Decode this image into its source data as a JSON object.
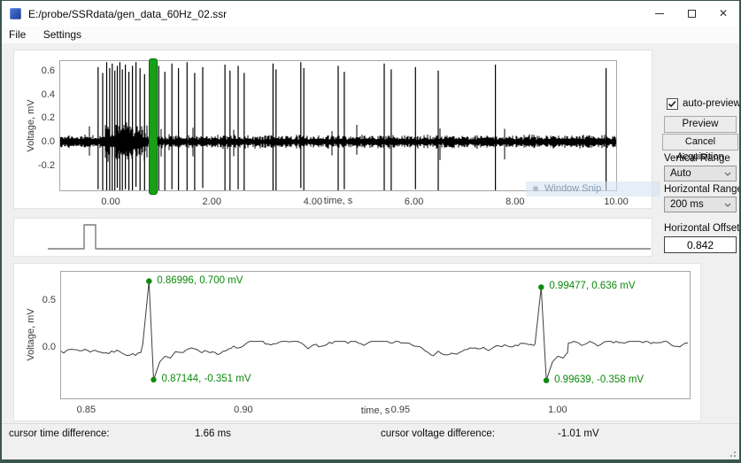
{
  "window": {
    "title": "E:/probe/SSRdata/gen_data_60Hz_02.ssr",
    "minimize_icon": "minimize",
    "maximize_icon": "maximize",
    "close_icon": "✕"
  },
  "menu": {
    "items": [
      "File",
      "Settings"
    ]
  },
  "controls_panel": {
    "auto_preview_label": "auto-preview",
    "auto_preview_checked": true,
    "preview_button": "Preview",
    "cancel_button": "Cancel Acquisition",
    "vertical_range_label": "Vertical Range",
    "vertical_range_value": "Auto",
    "horizontal_range_label": "Horizontal Range",
    "horizontal_range_value": "200 ms",
    "horizontal_offset_label": "Horizontal Offset",
    "horizontal_offset_value": "0.842"
  },
  "status_bar": {
    "time_label": "cursor time difference:",
    "time_value": "1.66 ms",
    "voltage_label": "cursor voltage difference:",
    "voltage_value": "-1.01 mV"
  },
  "watermark": {
    "label": "Window Snip"
  },
  "colors": {
    "annotation_green": "#0b8a0b",
    "cursor_green_fill": "#17a017",
    "cursor_green_border": "#0a6c0a",
    "waveform_black": "#000000",
    "zoom_trace_gray": "#3f3f3f",
    "pulse_gray": "#7a7a7a",
    "window_border_teal": "#3a564e"
  },
  "chart_data": [
    {
      "id": "overview",
      "type": "line",
      "title": "",
      "xlabel": "time, s",
      "ylabel": "Voltage, mV",
      "xlim": [
        -1.0,
        10.0
      ],
      "ylim": [
        -0.41,
        0.68
      ],
      "xticks": [
        "0.00",
        "2.00",
        "4.00",
        "6.00",
        "8.00",
        "10.00"
      ],
      "xtick_values": [
        0,
        2,
        4,
        6,
        8,
        10
      ],
      "yticks": [
        "0.6",
        "0.4",
        "0.2",
        "0.0",
        "-0.2"
      ],
      "ytick_values": [
        0.6,
        0.4,
        0.2,
        0.0,
        -0.2
      ],
      "grid": false,
      "noise_band_mv": 0.05,
      "burst_interval_s": [
        -0.1,
        0.72
      ],
      "cursor_window_s": [
        0.76,
        0.9
      ],
      "spikes": [
        {
          "t": -0.25,
          "u": 0.63,
          "d": -0.4
        },
        {
          "t": -0.16,
          "u": 0.58,
          "d": -0.44
        },
        {
          "t": -0.08,
          "u": 0.67,
          "d": -0.42
        },
        {
          "t": -0.02,
          "u": 0.62,
          "d": -0.45
        },
        {
          "t": 0.03,
          "u": 0.66,
          "d": -0.41
        },
        {
          "t": 0.08,
          "u": 0.6,
          "d": -0.44
        },
        {
          "t": 0.13,
          "u": 0.64,
          "d": -0.39
        },
        {
          "t": 0.18,
          "u": 0.67,
          "d": -0.43
        },
        {
          "t": 0.23,
          "u": 0.61,
          "d": -0.45
        },
        {
          "t": 0.29,
          "u": 0.65,
          "d": -0.4
        },
        {
          "t": 0.36,
          "u": 0.59,
          "d": -0.44
        },
        {
          "t": 0.43,
          "u": 0.64,
          "d": -0.41
        },
        {
          "t": 0.5,
          "u": 0.67,
          "d": -0.38
        },
        {
          "t": 0.58,
          "u": 0.62,
          "d": -0.43
        },
        {
          "t": 0.67,
          "u": 0.57,
          "d": -0.41
        },
        {
          "t": 0.95,
          "u": 0.64,
          "d": -0.42
        },
        {
          "t": 1.07,
          "u": 0.59,
          "d": -0.45
        },
        {
          "t": 1.21,
          "u": 0.66,
          "d": -0.4
        },
        {
          "t": 1.34,
          "u": 0.62,
          "d": -0.43
        },
        {
          "t": 1.51,
          "u": 0.67,
          "d": -0.41
        },
        {
          "t": 1.66,
          "u": 0.58,
          "d": -0.44
        },
        {
          "t": 1.82,
          "u": 0.63,
          "d": -0.39
        },
        {
          "t": 2.26,
          "u": 0.65,
          "d": -0.42
        },
        {
          "t": 2.36,
          "u": 0.6,
          "d": -0.44
        },
        {
          "t": 2.52,
          "u": 0.64,
          "d": -0.4
        },
        {
          "t": 2.64,
          "u": 0.58,
          "d": -0.43
        },
        {
          "t": 3.21,
          "u": 0.66,
          "d": -0.41
        },
        {
          "t": 3.27,
          "u": 0.61,
          "d": -0.44
        },
        {
          "t": 3.76,
          "u": 0.67,
          "d": -0.39
        },
        {
          "t": 3.82,
          "u": 0.62,
          "d": -0.42
        },
        {
          "t": 4.5,
          "u": 0.64,
          "d": -0.43
        },
        {
          "t": 4.62,
          "u": 0.59,
          "d": -0.4
        },
        {
          "t": 5.41,
          "u": 0.66,
          "d": -0.42
        },
        {
          "t": 5.55,
          "u": 0.61,
          "d": -0.44
        },
        {
          "t": 6.03,
          "u": 0.63,
          "d": -0.4
        },
        {
          "t": 6.48,
          "u": 0.6,
          "d": -0.43
        },
        {
          "t": 7.61,
          "u": 0.65,
          "d": -0.41
        },
        {
          "t": 9.8,
          "u": 0.62,
          "d": -0.42
        }
      ]
    },
    {
      "id": "stimulus",
      "type": "line",
      "shape": "pulse",
      "xlim": [
        0,
        10
      ],
      "baseline_v": 0,
      "pulse_on_s": 0.6,
      "pulse_off_s": 0.8,
      "pulse_height": 1
    },
    {
      "id": "zoom",
      "type": "line",
      "xlabel": "time, s",
      "ylabel": "Voltage, mV",
      "xlim": [
        0.842,
        1.042
      ],
      "ylim": [
        -0.55,
        0.8
      ],
      "xticks": [
        "0.85",
        "0.90",
        "0.95",
        "1.00"
      ],
      "xtick_values": [
        0.85,
        0.9,
        0.95,
        1.0
      ],
      "yticks": [
        "0.5",
        "0.0"
      ],
      "ytick_values": [
        0.5,
        0.0
      ],
      "grid": false,
      "noise_band_mv": 0.05,
      "annotations": [
        {
          "t": 0.86996,
          "v": 0.7,
          "label": "0.86996, 0.700 mV"
        },
        {
          "t": 0.87144,
          "v": -0.351,
          "label": "0.87144, -0.351 mV"
        },
        {
          "t": 0.99477,
          "v": 0.636,
          "label": "0.99477, 0.636 mV"
        },
        {
          "t": 0.99639,
          "v": -0.358,
          "label": "0.99639, -0.358 mV"
        }
      ]
    }
  ]
}
